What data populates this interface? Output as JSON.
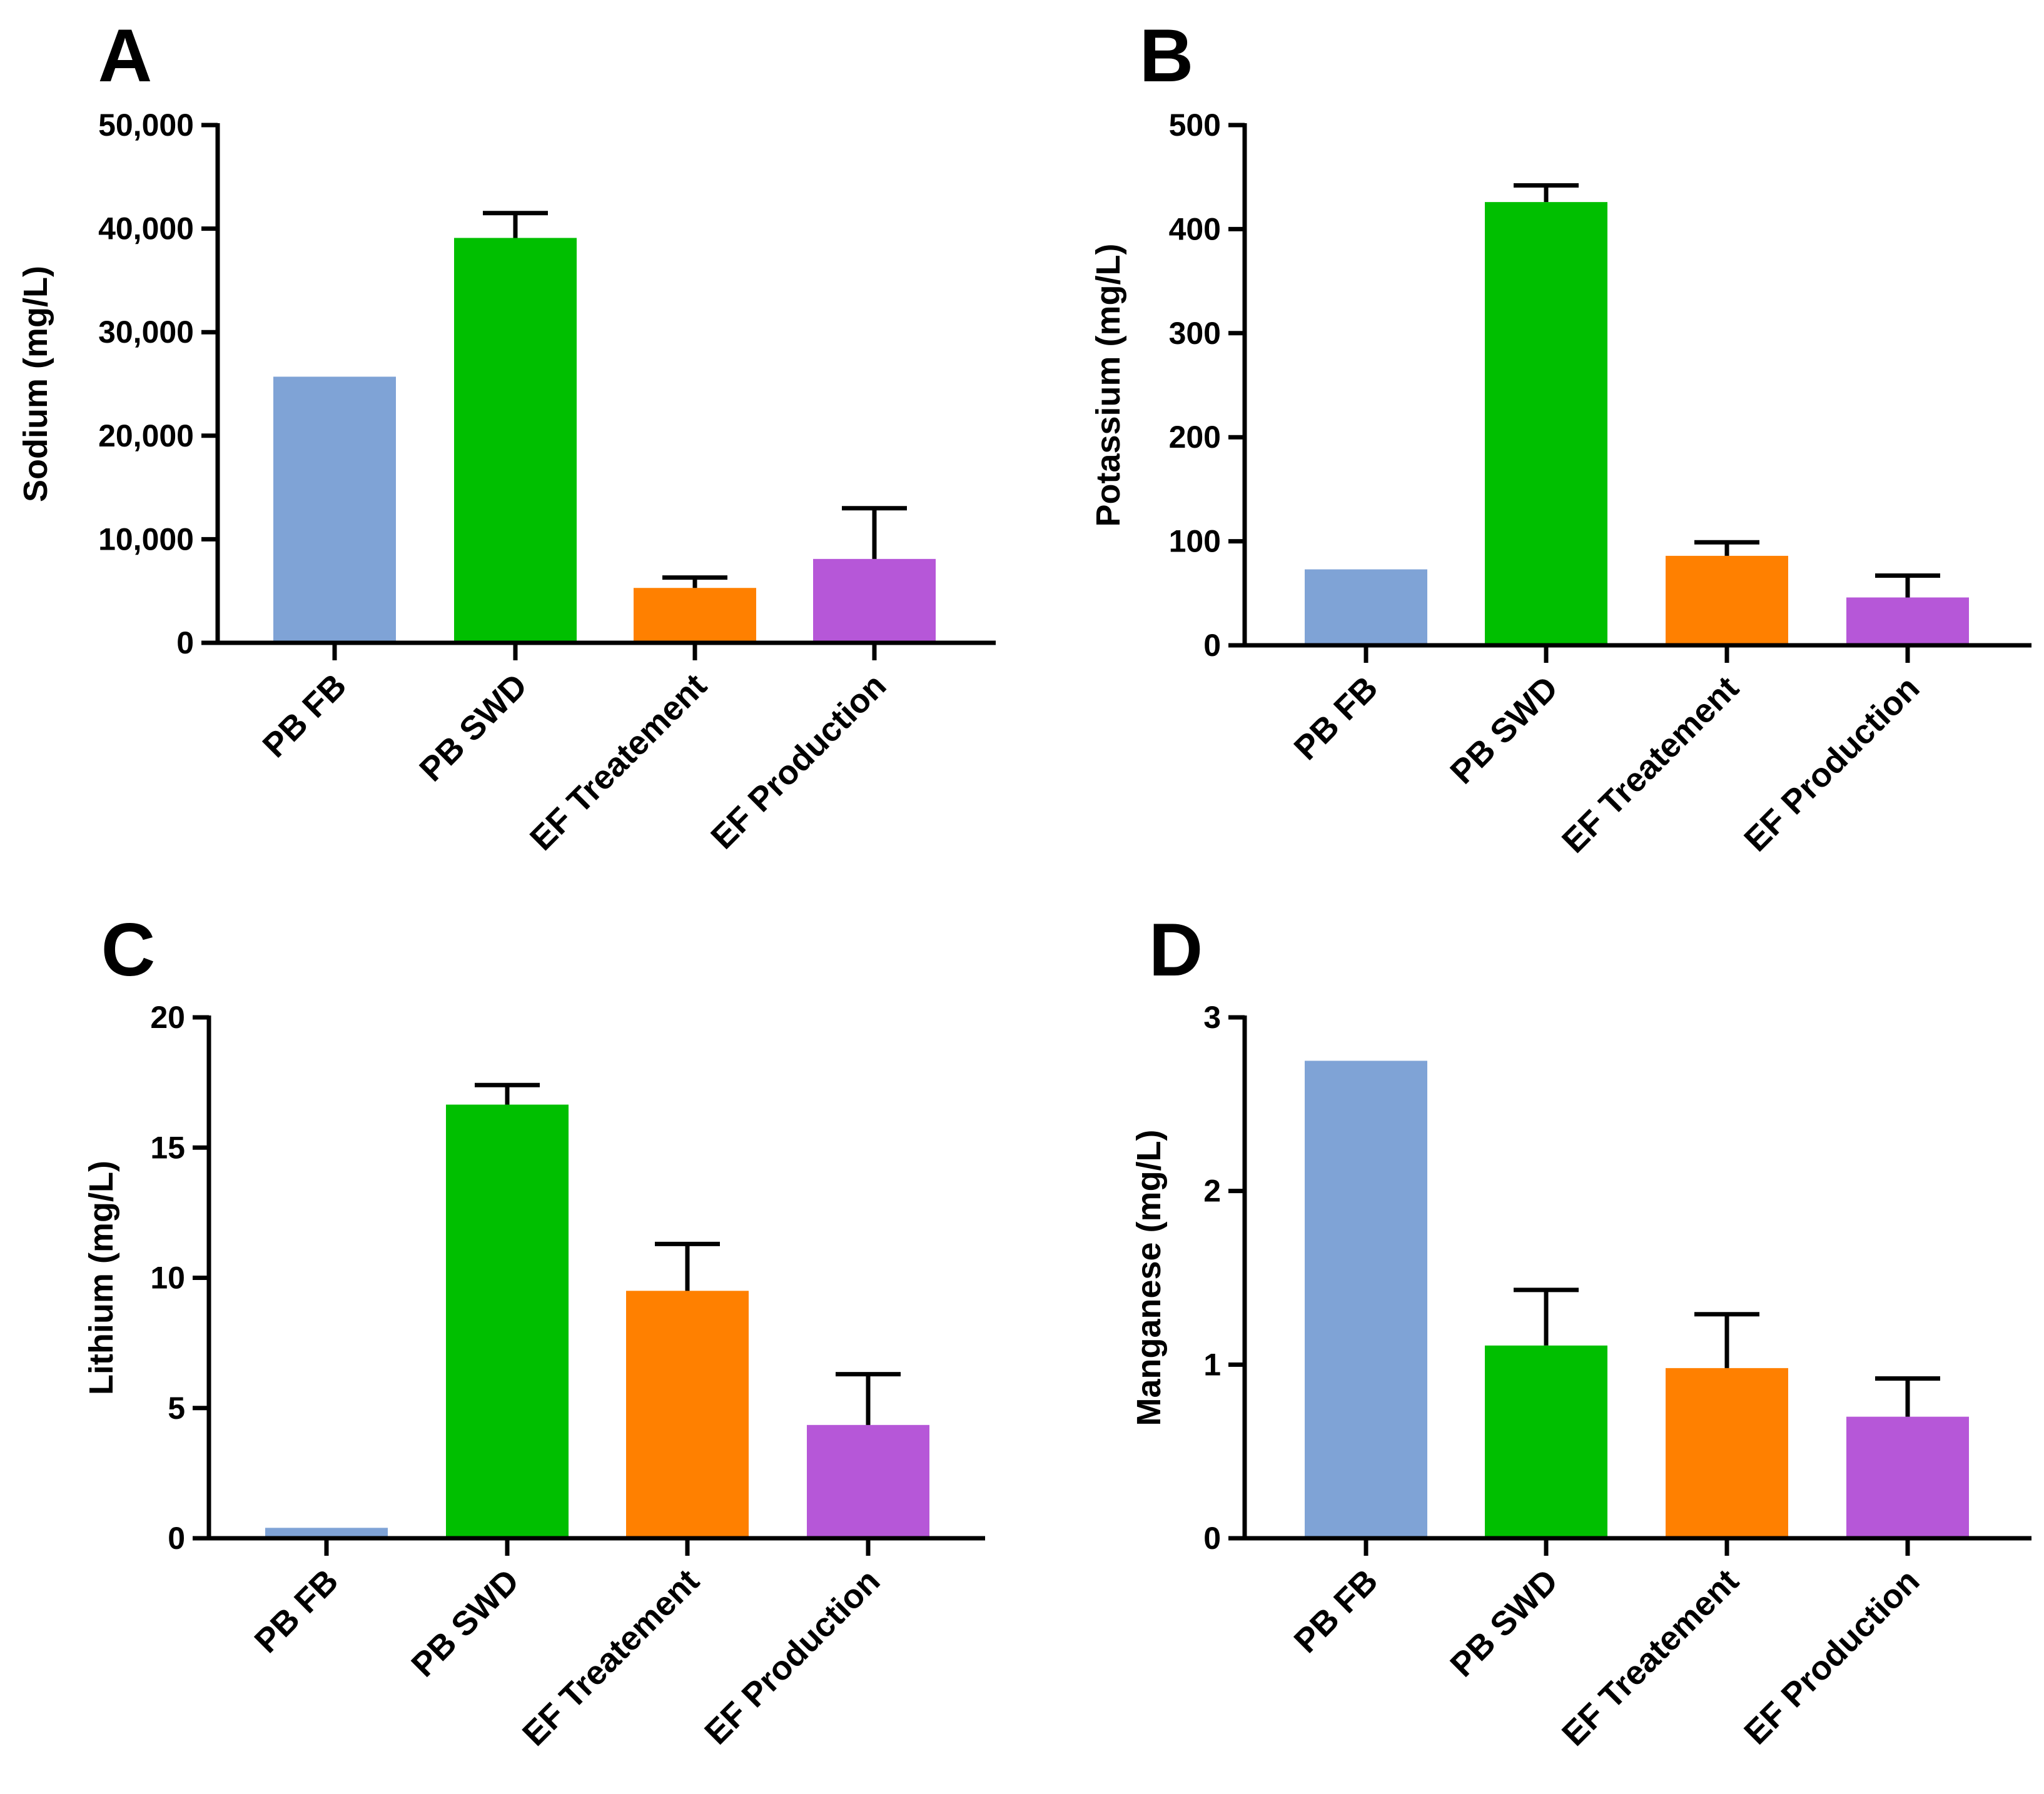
{
  "chart_data": [
    {
      "panel": "A",
      "type": "bar",
      "ylabel": "Sodium (mg/L)",
      "ylim": [
        0,
        50000
      ],
      "yticks": [
        0,
        10000,
        20000,
        30000,
        40000,
        50000
      ],
      "ytick_labels": [
        "0",
        "10,000",
        "20,000",
        "30,000",
        "40,000",
        "50,000"
      ],
      "categories": [
        "PB FB",
        "PB SWD",
        "EF Treatement",
        "EF Production"
      ],
      "values": [
        25700,
        39100,
        5300,
        8100
      ],
      "errors": [
        0,
        2400,
        1000,
        4900
      ],
      "colors": [
        "#7fa3d6",
        "#00bf00",
        "#ff8000",
        "#b657d8"
      ]
    },
    {
      "panel": "B",
      "type": "bar",
      "ylabel": "Potassium (mg/L)",
      "ylim": [
        0,
        500
      ],
      "yticks": [
        0,
        100,
        200,
        300,
        400,
        500
      ],
      "ytick_labels": [
        "0",
        "100",
        "200",
        "300",
        "400",
        "500"
      ],
      "categories": [
        "PB FB",
        "PB SWD",
        "EF Treatement",
        "EF Production"
      ],
      "values": [
        73,
        426,
        86,
        46
      ],
      "errors": [
        0,
        16,
        13,
        21
      ],
      "colors": [
        "#7fa3d6",
        "#00bf00",
        "#ff8000",
        "#b657d8"
      ]
    },
    {
      "panel": "C",
      "type": "bar",
      "ylabel": "Lithium (mg/L)",
      "ylim": [
        0,
        20
      ],
      "yticks": [
        0,
        5,
        10,
        15,
        20
      ],
      "ytick_labels": [
        "0",
        "5",
        "10",
        "15",
        "20"
      ],
      "categories": [
        "PB FB",
        "PB SWD",
        "EF Treatement",
        "EF Production"
      ],
      "values": [
        0.4,
        16.65,
        9.5,
        4.35
      ],
      "errors": [
        0,
        0.75,
        1.8,
        1.95
      ],
      "colors": [
        "#7fa3d6",
        "#00bf00",
        "#ff8000",
        "#b657d8"
      ]
    },
    {
      "panel": "D",
      "type": "bar",
      "ylabel": "Manganese (mg/L)",
      "ylim": [
        0,
        3
      ],
      "yticks": [
        0,
        1,
        2,
        3
      ],
      "ytick_labels": [
        "0",
        "1",
        "2",
        "3"
      ],
      "categories": [
        "PB FB",
        "PB SWD",
        "EF Treatement",
        "EF Production"
      ],
      "values": [
        2.75,
        1.11,
        0.98,
        0.7
      ],
      "errors": [
        0,
        0.32,
        0.31,
        0.22
      ],
      "colors": [
        "#7fa3d6",
        "#00bf00",
        "#ff8000",
        "#b657d8"
      ]
    }
  ]
}
